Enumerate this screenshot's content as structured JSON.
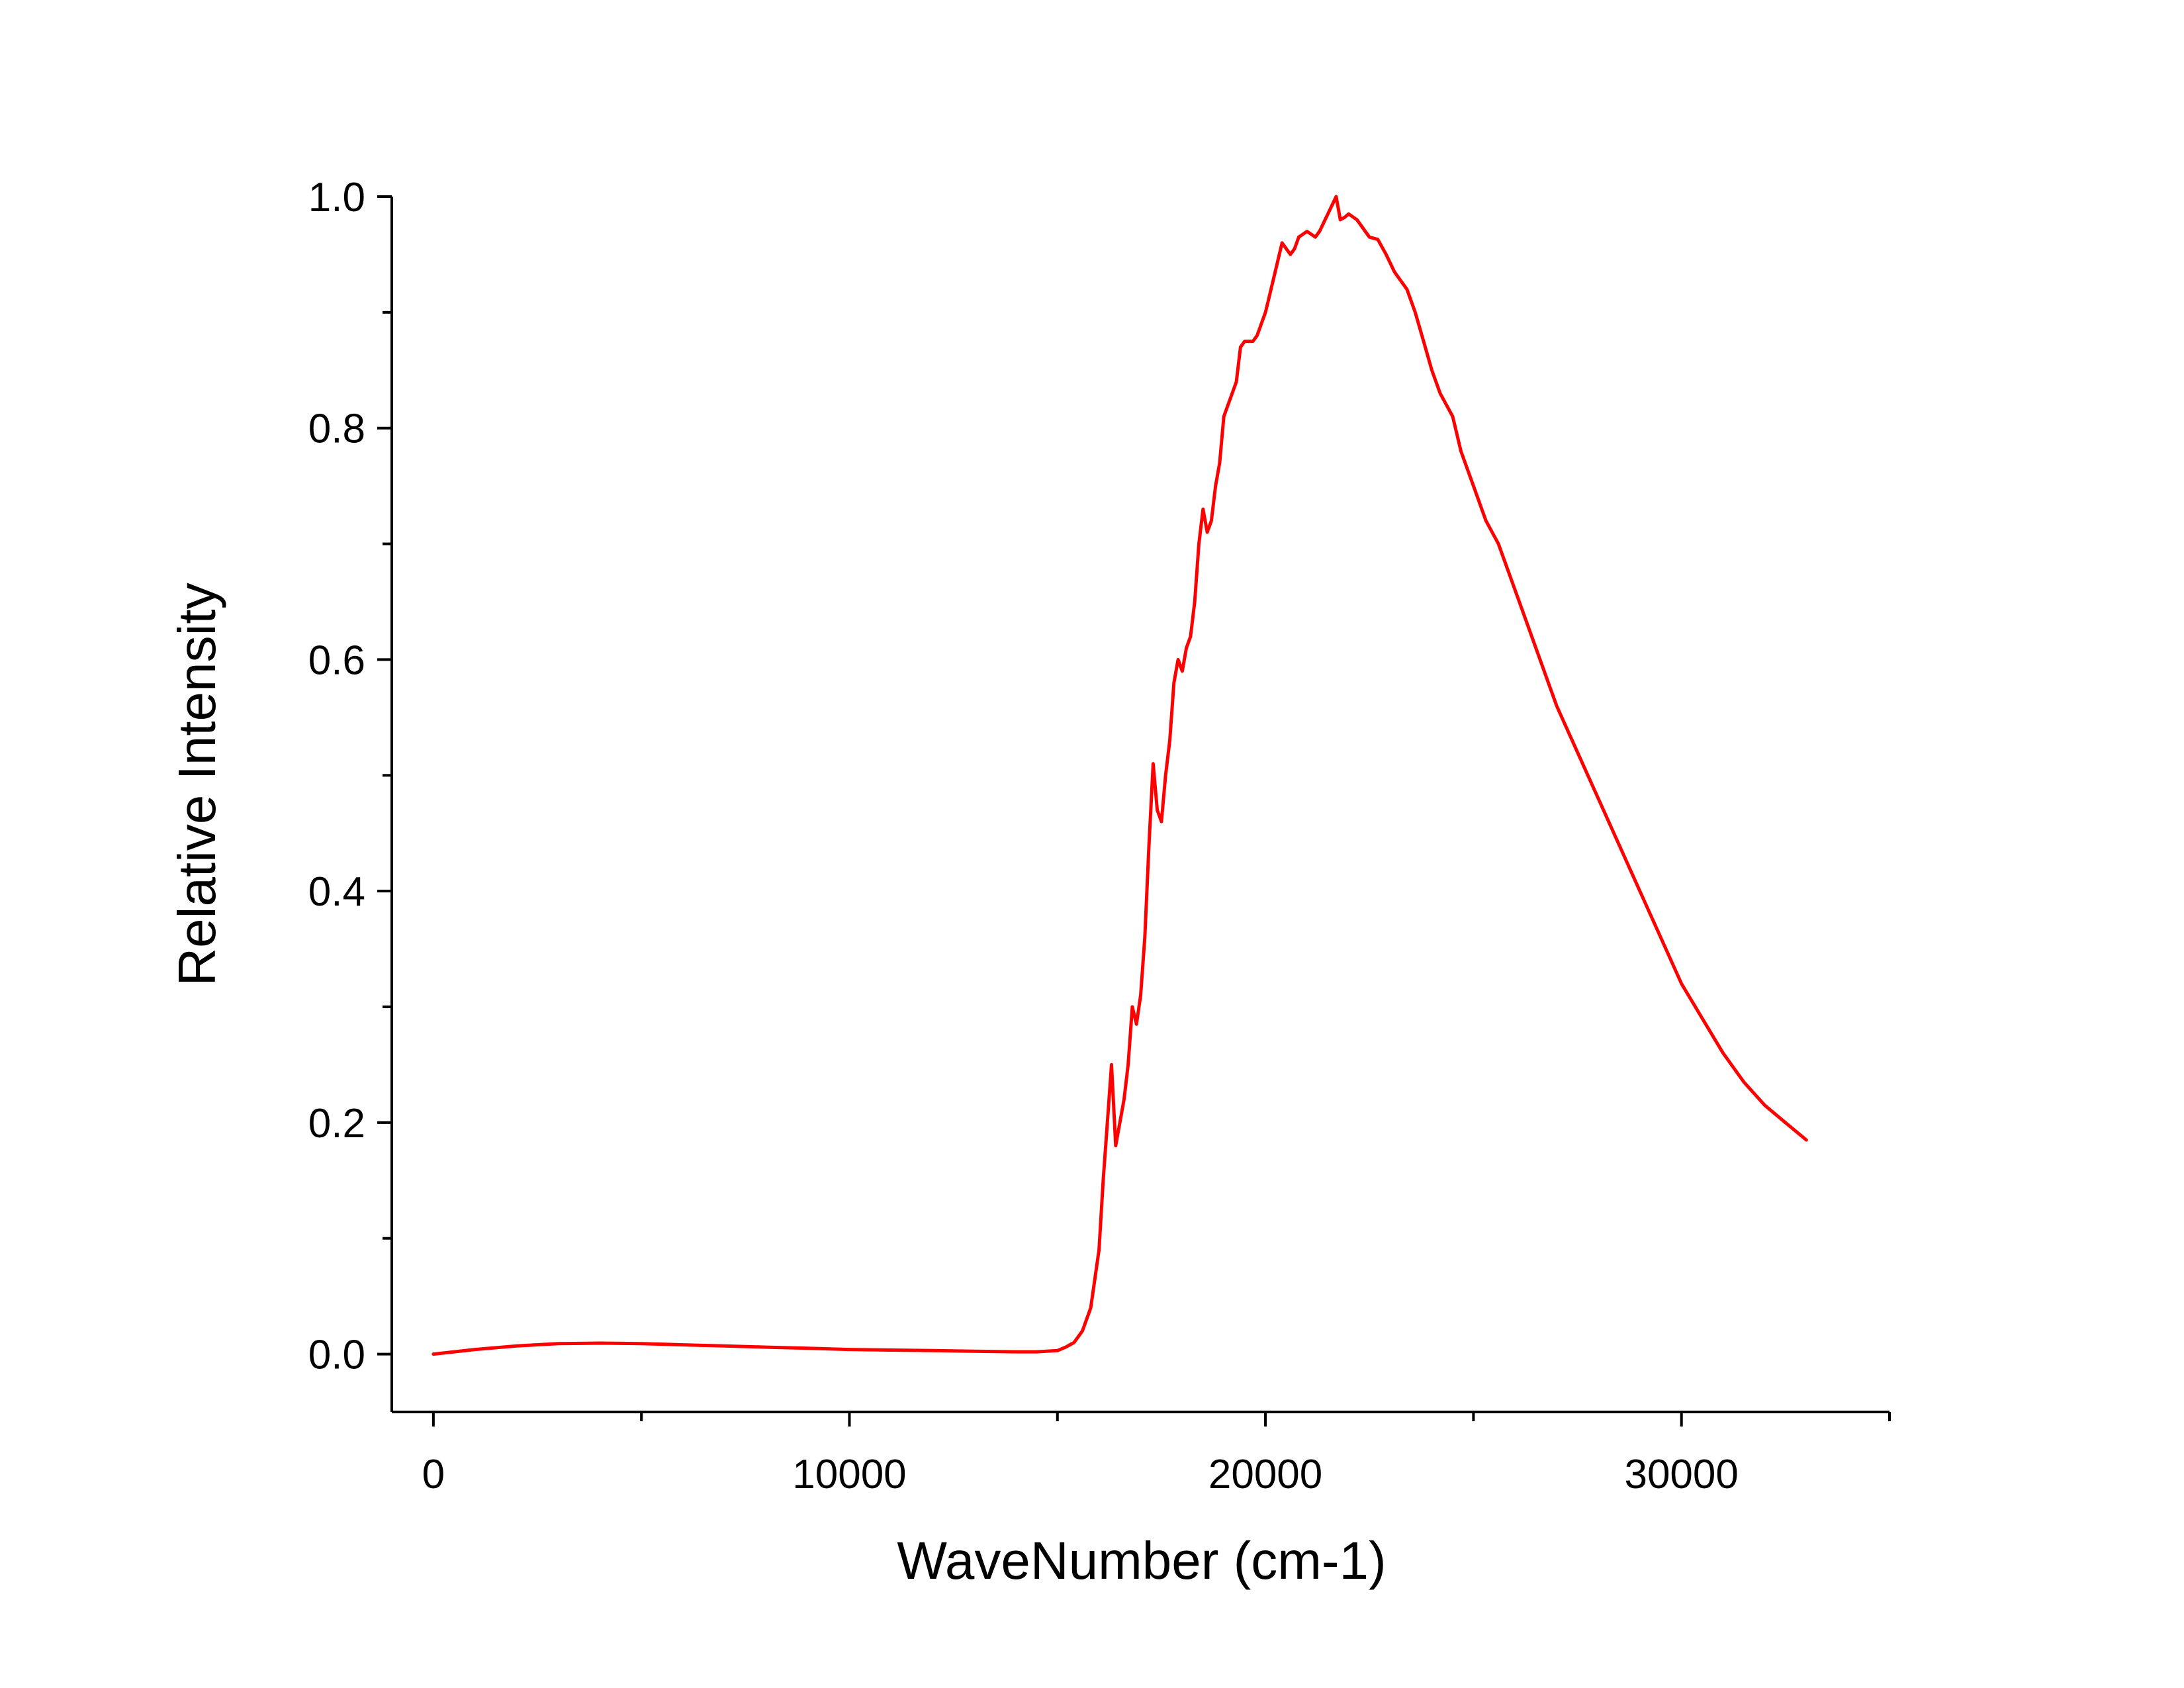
{
  "chart_data": {
    "type": "line",
    "xlabel": "WaveNumber (cm-1)",
    "ylabel": "Relative Intensity",
    "xlim": [
      -1000,
      35000
    ],
    "ylim": [
      -0.05,
      1.0
    ],
    "x_ticks": [
      0,
      10000,
      20000,
      30000
    ],
    "x_tick_labels": [
      "0",
      "10000",
      "20000",
      "30000"
    ],
    "y_ticks": [
      0.0,
      0.2,
      0.4,
      0.6,
      0.8,
      1.0
    ],
    "y_tick_labels": [
      "0.0",
      "0.2",
      "0.4",
      "0.6",
      "0.8",
      "1.0"
    ],
    "x_minor_ticks": [
      5000,
      15000,
      25000,
      35000
    ],
    "y_minor_ticks": [
      0.1,
      0.3,
      0.5,
      0.7,
      0.9
    ],
    "grid": false,
    "legend": "none",
    "series": [
      {
        "color": "#ff0000",
        "x": [
          0,
          500,
          1000,
          2000,
          3000,
          4000,
          5000,
          6000,
          7000,
          8000,
          9000,
          10000,
          11000,
          12000,
          13000,
          14000,
          14500,
          15000,
          15200,
          15400,
          15600,
          15800,
          16000,
          16100,
          16200,
          16300,
          16400,
          16500,
          16600,
          16700,
          16800,
          16900,
          17000,
          17100,
          17200,
          17300,
          17400,
          17500,
          17600,
          17700,
          17800,
          17900,
          18000,
          18100,
          18200,
          18300,
          18400,
          18500,
          18600,
          18700,
          18800,
          18900,
          19000,
          19100,
          19200,
          19300,
          19400,
          19500,
          19700,
          19800,
          19900,
          20000,
          20200,
          20400,
          20600,
          20700,
          20800,
          21000,
          21200,
          21300,
          21500,
          21700,
          21800,
          21900,
          22000,
          22200,
          22400,
          22500,
          22700,
          22900,
          23100,
          23200,
          23400,
          23600,
          23800,
          24000,
          24200,
          24500,
          24700,
          25000,
          25300,
          25600,
          26000,
          26500,
          27000,
          27500,
          28000,
          28500,
          29000,
          29500,
          30000,
          30500,
          31000,
          31500,
          32000,
          32500,
          33000
        ],
        "y": [
          0.0,
          0.002,
          0.004,
          0.007,
          0.009,
          0.0095,
          0.009,
          0.008,
          0.007,
          0.006,
          0.005,
          0.004,
          0.0035,
          0.003,
          0.0025,
          0.002,
          0.002,
          0.003,
          0.006,
          0.01,
          0.02,
          0.04,
          0.09,
          0.15,
          0.2,
          0.25,
          0.18,
          0.2,
          0.22,
          0.25,
          0.3,
          0.285,
          0.31,
          0.36,
          0.44,
          0.51,
          0.47,
          0.46,
          0.5,
          0.53,
          0.58,
          0.6,
          0.59,
          0.61,
          0.62,
          0.65,
          0.7,
          0.73,
          0.71,
          0.72,
          0.75,
          0.77,
          0.81,
          0.82,
          0.83,
          0.84,
          0.87,
          0.875,
          0.875,
          0.88,
          0.89,
          0.9,
          0.93,
          0.96,
          0.95,
          0.955,
          0.965,
          0.97,
          0.965,
          0.97,
          0.985,
          1.0,
          0.98,
          0.982,
          0.985,
          0.98,
          0.97,
          0.965,
          0.963,
          0.95,
          0.935,
          0.93,
          0.92,
          0.9,
          0.875,
          0.85,
          0.83,
          0.81,
          0.78,
          0.75,
          0.72,
          0.7,
          0.66,
          0.61,
          0.56,
          0.52,
          0.48,
          0.44,
          0.4,
          0.36,
          0.32,
          0.29,
          0.26,
          0.235,
          0.215,
          0.2,
          0.185
        ]
      }
    ]
  }
}
